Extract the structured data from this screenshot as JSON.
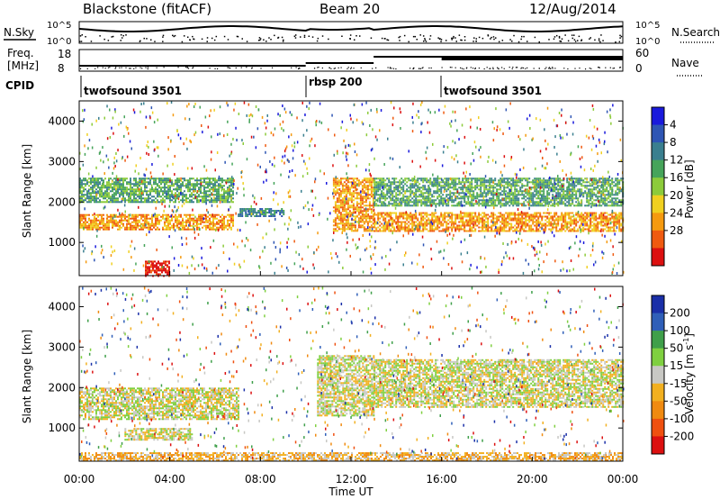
{
  "header": {
    "site": "Blackstone (fitACF)",
    "beam": "Beam 20",
    "date": "12/Aug/2014"
  },
  "noise_panel": {
    "left_label": "N.Sky",
    "right_label": "N.Search",
    "ticks_left": [
      "10^5",
      "10^0"
    ],
    "ticks_right": [
      "10^5",
      "10^0"
    ]
  },
  "freq_panel": {
    "label_line1": "Freq.",
    "label_line2": "[MHz]",
    "ticks_left": [
      "18",
      "8"
    ],
    "right_label": "Nave",
    "ticks_right": [
      "60",
      "0"
    ]
  },
  "cpid": {
    "label": "CPID",
    "segments": [
      {
        "name": "twofsound 3501",
        "start_hour": 0
      },
      {
        "name": "rbsp 200",
        "start_hour": 10
      },
      {
        "name": "twofsound 3501",
        "start_hour": 16
      }
    ]
  },
  "time_axis": {
    "label": "Time UT",
    "ticks": [
      "00:00",
      "04:00",
      "08:00",
      "12:00",
      "16:00",
      "20:00",
      "00:00"
    ]
  },
  "chart_data": [
    {
      "type": "heatmap",
      "title": "",
      "xlabel": "Time UT",
      "ylabel": "Slant Range [km]",
      "xlim": [
        0,
        24
      ],
      "ylim": [
        180,
        4500
      ],
      "yticks": [
        "1000",
        "2000",
        "3000",
        "4000"
      ],
      "colorbar": {
        "label": "Power [dB]",
        "ticks": [
          "4",
          "8",
          "12",
          "16",
          "20",
          "24",
          "28"
        ],
        "colors": [
          "#1a1adc",
          "#2e55b4",
          "#3a7f8f",
          "#46a45a",
          "#8ccb3a",
          "#f0d020",
          "#f59a10",
          "#ef5a10",
          "#dc1010"
        ]
      },
      "bands": [
        {
          "t0": 0.0,
          "t1": 6.8,
          "r0": 1300,
          "r1": 1700,
          "level": 6
        },
        {
          "t0": 0.0,
          "t1": 6.8,
          "r0": 2000,
          "r1": 2600,
          "level": 3
        },
        {
          "t0": 2.9,
          "t1": 4.0,
          "r0": 180,
          "r1": 550,
          "level": 8
        },
        {
          "t0": 7.0,
          "t1": 9.0,
          "r0": 1650,
          "r1": 1850,
          "level": 2
        },
        {
          "t0": 11.2,
          "t1": 13.0,
          "r0": 1300,
          "r1": 2600,
          "level": 6
        },
        {
          "t0": 13.0,
          "t1": 24.0,
          "r0": 1300,
          "r1": 1750,
          "level": 6
        },
        {
          "t0": 13.0,
          "t1": 24.0,
          "r0": 1900,
          "r1": 2600,
          "level": 3
        }
      ]
    },
    {
      "type": "heatmap",
      "title": "",
      "xlabel": "Time UT",
      "ylabel": "Slant Range [km]",
      "xlim": [
        0,
        24
      ],
      "ylim": [
        180,
        4500
      ],
      "yticks": [
        "1000",
        "2000",
        "3000",
        "4000"
      ],
      "colorbar": {
        "label": "Velocity [m s^-1]",
        "ticks": [
          "200",
          "100",
          "50",
          "15",
          "-15",
          "-50",
          "-100",
          "-200"
        ],
        "colors": [
          "#1a2fa8",
          "#2f5fb8",
          "#3f9f4a",
          "#7fd040",
          "#c8c8c4",
          "#f2b020",
          "#f08a10",
          "#ef5010",
          "#dc1010"
        ]
      },
      "bands": [
        {
          "t0": 0.0,
          "t1": 7.0,
          "r0": 1200,
          "r1": 2000,
          "level": 4
        },
        {
          "t0": 2.0,
          "t1": 5.0,
          "r0": 700,
          "r1": 1000,
          "level": 4
        },
        {
          "t0": 0.0,
          "t1": 24.0,
          "r0": 180,
          "r1": 400,
          "level": 5
        },
        {
          "t0": 10.5,
          "t1": 13.0,
          "r0": 1300,
          "r1": 2800,
          "level": 4
        },
        {
          "t0": 13.0,
          "t1": 24.0,
          "r0": 1500,
          "r1": 2700,
          "level": 4
        }
      ]
    }
  ]
}
